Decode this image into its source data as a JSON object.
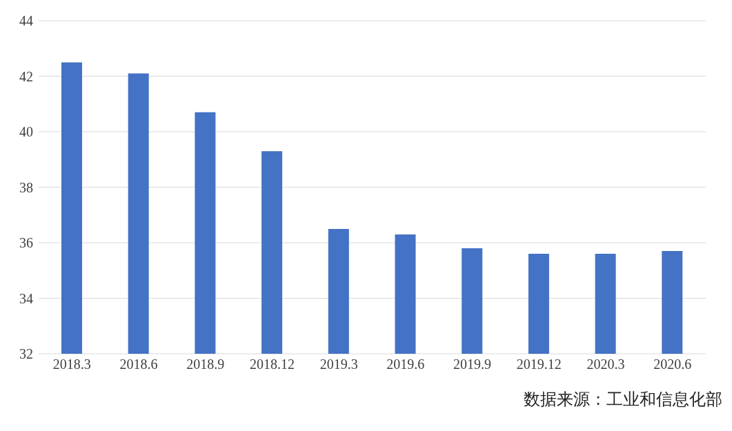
{
  "chart_data": {
    "type": "bar",
    "categories": [
      "2018.3",
      "2018.6",
      "2018.9",
      "2018.12",
      "2019.3",
      "2019.6",
      "2019.9",
      "2019.12",
      "2020.3",
      "2020.6"
    ],
    "values": [
      42.5,
      42.1,
      40.7,
      39.3,
      36.5,
      36.3,
      35.8,
      35.6,
      35.6,
      35.7
    ],
    "color": "#4472c4",
    "ylim": [
      32,
      44
    ],
    "yticks": [
      32,
      34,
      36,
      38,
      40,
      42,
      44
    ],
    "grid": "y",
    "annotations": [
      "数据来源：工业和信息化部"
    ]
  }
}
